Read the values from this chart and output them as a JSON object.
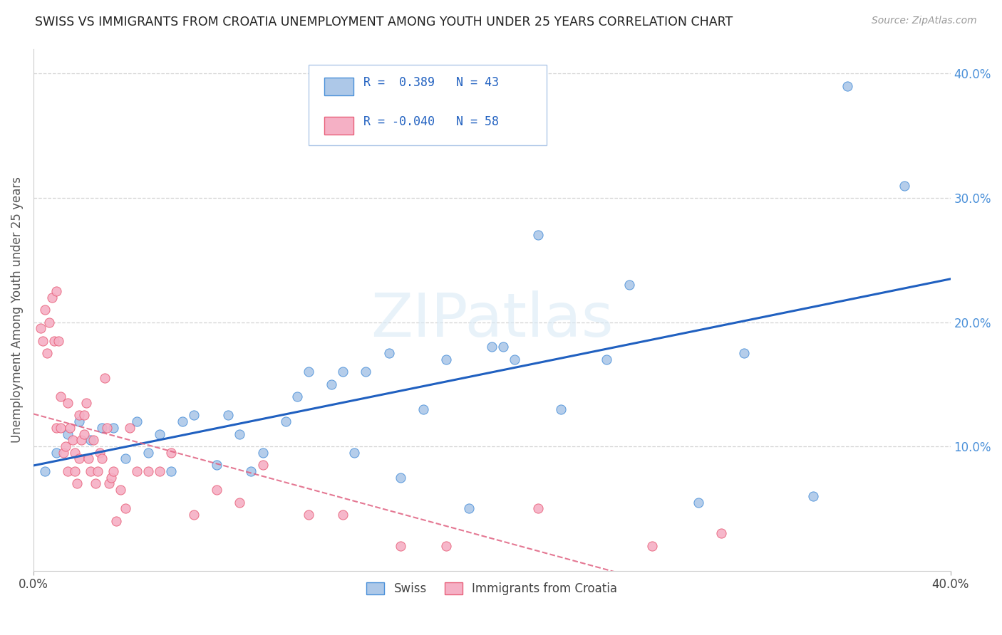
{
  "title": "SWISS VS IMMIGRANTS FROM CROATIA UNEMPLOYMENT AMONG YOUTH UNDER 25 YEARS CORRELATION CHART",
  "source": "Source: ZipAtlas.com",
  "ylabel": "Unemployment Among Youth under 25 years",
  "watermark": "ZIPatlas",
  "xlim": [
    0.0,
    0.4
  ],
  "ylim": [
    0.0,
    0.42
  ],
  "ytick_vals": [
    0.1,
    0.2,
    0.3,
    0.4
  ],
  "ytick_labels": [
    "10.0%",
    "20.0%",
    "30.0%",
    "40.0%"
  ],
  "xtick_vals": [
    0.0,
    0.4
  ],
  "xtick_labels": [
    "0.0%",
    "40.0%"
  ],
  "swiss_R": 0.389,
  "swiss_N": 43,
  "croatia_R": -0.04,
  "croatia_N": 58,
  "swiss_color": "#adc8e8",
  "croatia_color": "#f5b0c5",
  "swiss_edge_color": "#4a90d9",
  "croatia_edge_color": "#e8607a",
  "swiss_line_color": "#2060c0",
  "croatia_line_color": "#e06080",
  "background_color": "#ffffff",
  "grid_color": "#c8c8c8",
  "swiss_x": [
    0.005,
    0.01,
    0.015,
    0.02,
    0.025,
    0.03,
    0.035,
    0.04,
    0.045,
    0.05,
    0.055,
    0.06,
    0.065,
    0.07,
    0.08,
    0.085,
    0.09,
    0.095,
    0.1,
    0.11,
    0.115,
    0.12,
    0.13,
    0.135,
    0.14,
    0.145,
    0.155,
    0.16,
    0.17,
    0.18,
    0.19,
    0.2,
    0.205,
    0.21,
    0.22,
    0.23,
    0.25,
    0.26,
    0.29,
    0.31,
    0.34,
    0.355,
    0.38
  ],
  "swiss_y": [
    0.08,
    0.095,
    0.11,
    0.12,
    0.105,
    0.115,
    0.115,
    0.09,
    0.12,
    0.095,
    0.11,
    0.08,
    0.12,
    0.125,
    0.085,
    0.125,
    0.11,
    0.08,
    0.095,
    0.12,
    0.14,
    0.16,
    0.15,
    0.16,
    0.095,
    0.16,
    0.175,
    0.075,
    0.13,
    0.17,
    0.05,
    0.18,
    0.18,
    0.17,
    0.27,
    0.13,
    0.17,
    0.23,
    0.055,
    0.175,
    0.06,
    0.39,
    0.31
  ],
  "croatia_x": [
    0.003,
    0.004,
    0.005,
    0.006,
    0.007,
    0.008,
    0.009,
    0.01,
    0.01,
    0.011,
    0.012,
    0.012,
    0.013,
    0.014,
    0.015,
    0.015,
    0.016,
    0.017,
    0.018,
    0.018,
    0.019,
    0.02,
    0.02,
    0.021,
    0.022,
    0.022,
    0.023,
    0.024,
    0.025,
    0.026,
    0.027,
    0.028,
    0.029,
    0.03,
    0.031,
    0.032,
    0.033,
    0.034,
    0.035,
    0.036,
    0.038,
    0.04,
    0.042,
    0.045,
    0.05,
    0.055,
    0.06,
    0.07,
    0.08,
    0.09,
    0.1,
    0.12,
    0.135,
    0.16,
    0.18,
    0.22,
    0.27,
    0.3
  ],
  "croatia_y": [
    0.195,
    0.185,
    0.21,
    0.175,
    0.2,
    0.22,
    0.185,
    0.225,
    0.115,
    0.185,
    0.115,
    0.14,
    0.095,
    0.1,
    0.08,
    0.135,
    0.115,
    0.105,
    0.095,
    0.08,
    0.07,
    0.09,
    0.125,
    0.105,
    0.125,
    0.11,
    0.135,
    0.09,
    0.08,
    0.105,
    0.07,
    0.08,
    0.095,
    0.09,
    0.155,
    0.115,
    0.07,
    0.075,
    0.08,
    0.04,
    0.065,
    0.05,
    0.115,
    0.08,
    0.08,
    0.08,
    0.095,
    0.045,
    0.065,
    0.055,
    0.085,
    0.045,
    0.045,
    0.02,
    0.02,
    0.05,
    0.02,
    0.03
  ]
}
